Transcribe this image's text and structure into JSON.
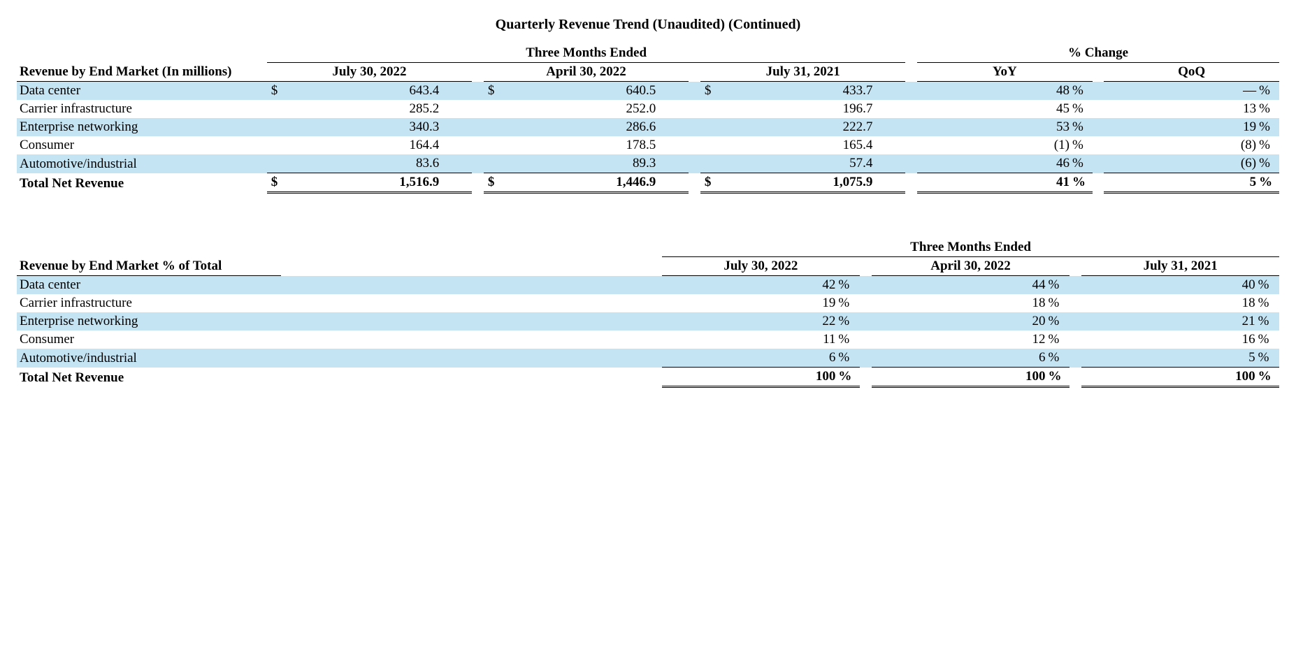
{
  "title": "Quarterly Revenue Trend (Unaudited) (Continued)",
  "table1": {
    "super_header_left": "Three Months Ended",
    "super_header_right": "% Change",
    "row_header": "Revenue by End Market (In millions)",
    "periods": {
      "p1": "July 30, 2022",
      "p2": "April 30, 2022",
      "p3": "July 31, 2021"
    },
    "pct_cols": {
      "yoy": "YoY",
      "qoq": "QoQ"
    },
    "currency": "$",
    "pct": "%",
    "rows": [
      {
        "label": "Data center",
        "p1": "643.4",
        "p2": "640.5",
        "p3": "433.7",
        "yoy": "48 ",
        "qoq": "— "
      },
      {
        "label": "Carrier infrastructure",
        "p1": "285.2",
        "p2": "252.0",
        "p3": "196.7",
        "yoy": "45 ",
        "qoq": "13 "
      },
      {
        "label": "Enterprise networking",
        "p1": "340.3",
        "p2": "286.6",
        "p3": "222.7",
        "yoy": "53 ",
        "qoq": "19 "
      },
      {
        "label": "Consumer",
        "p1": "164.4",
        "p2": "178.5",
        "p3": "165.4",
        "yoy": "(1)",
        "qoq": "(8)"
      },
      {
        "label": "Automotive/industrial",
        "p1": "83.6",
        "p2": "89.3",
        "p3": "57.4",
        "yoy": "46 ",
        "qoq": "(6)"
      }
    ],
    "total": {
      "label": "Total Net Revenue",
      "p1": "1,516.9",
      "p2": "1,446.9",
      "p3": "1,075.9",
      "yoy": "41 ",
      "qoq": "5 "
    }
  },
  "table2": {
    "super_header": "Three Months Ended",
    "row_header": "Revenue by End Market % of Total",
    "periods": {
      "p1": "July 30, 2022",
      "p2": "April 30, 2022",
      "p3": "July 31, 2021"
    },
    "pct": "%",
    "rows": [
      {
        "label": "Data center",
        "p1": "42 ",
        "p2": "44 ",
        "p3": "40 "
      },
      {
        "label": "Carrier infrastructure",
        "p1": "19 ",
        "p2": "18 ",
        "p3": "18 "
      },
      {
        "label": "Enterprise networking",
        "p1": "22 ",
        "p2": "20 ",
        "p3": "21 "
      },
      {
        "label": "Consumer",
        "p1": "11 ",
        "p2": "12 ",
        "p3": "16 "
      },
      {
        "label": "Automotive/industrial",
        "p1": "6 ",
        "p2": "6 ",
        "p3": "5 "
      }
    ],
    "total": {
      "label": "Total Net Revenue",
      "p1": "100 ",
      "p2": "100 ",
      "p3": "100 "
    }
  },
  "styling": {
    "stripe_color": "#c5e4f3",
    "background_color": "#ffffff",
    "text_color": "#000000",
    "font_family": "Times New Roman",
    "font_size_pt": 14,
    "double_rule": true,
    "stripe_rows_index": [
      0,
      2,
      4
    ]
  }
}
